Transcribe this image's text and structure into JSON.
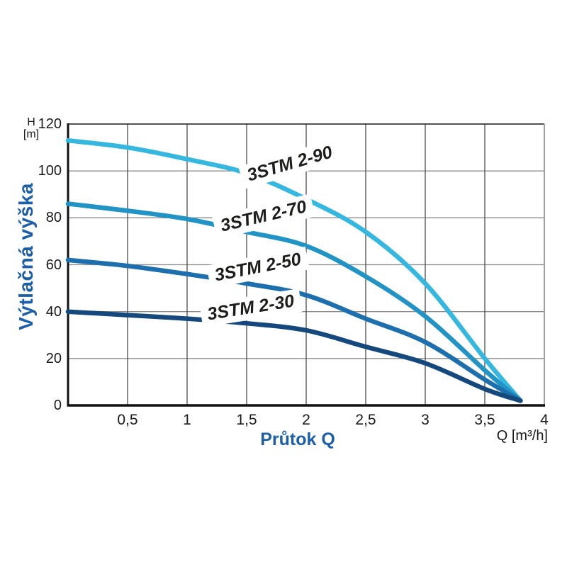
{
  "page": {
    "background": "#ffffff",
    "description": "Pump head-flow performance curves"
  },
  "y_axis_header": {
    "line1": "H",
    "line2": "[m]"
  },
  "chart_data": {
    "type": "line",
    "title": "",
    "xlabel": "Průtok Q",
    "x_unit": "Q [m³/h]",
    "ylabel": "Výtlačná výška",
    "y_unit": "H [m]",
    "xlim": [
      0,
      4
    ],
    "ylim": [
      0,
      120
    ],
    "x_grid_step": 0.5,
    "y_grid_step": 20,
    "grid": true,
    "legend_position": "inline-curve-labels",
    "x_ticks": [
      {
        "value": 0.5,
        "label": "0,5"
      },
      {
        "value": 1,
        "label": "1"
      },
      {
        "value": 1.5,
        "label": "1,5"
      },
      {
        "value": 2,
        "label": "2"
      },
      {
        "value": 2.5,
        "label": "2,5"
      },
      {
        "value": 3,
        "label": "3"
      },
      {
        "value": 3.5,
        "label": "3,5"
      },
      {
        "value": 4,
        "label": "4"
      }
    ],
    "y_ticks": [
      {
        "value": 120,
        "label": "120"
      },
      {
        "value": 100,
        "label": "100"
      },
      {
        "value": 80,
        "label": "80"
      },
      {
        "value": 60,
        "label": "60"
      },
      {
        "value": 40,
        "label": "40"
      },
      {
        "value": 20,
        "label": "20"
      },
      {
        "value": 0,
        "label": "0"
      }
    ],
    "series": [
      {
        "name": "3STM 2-90",
        "color": "#35b7df",
        "points": [
          [
            0,
            113
          ],
          [
            0.5,
            110
          ],
          [
            1,
            105
          ],
          [
            1.5,
            99
          ],
          [
            2,
            88
          ],
          [
            2.5,
            74
          ],
          [
            3,
            52
          ],
          [
            3.5,
            20
          ],
          [
            3.8,
            2
          ]
        ]
      },
      {
        "name": "3STM 2-70",
        "color": "#2193c4",
        "points": [
          [
            0,
            86
          ],
          [
            0.5,
            83
          ],
          [
            1,
            79.5
          ],
          [
            1.5,
            74
          ],
          [
            2,
            68
          ],
          [
            2.5,
            55
          ],
          [
            3,
            38
          ],
          [
            3.5,
            15
          ],
          [
            3.8,
            2
          ]
        ]
      },
      {
        "name": "3STM 2-50",
        "color": "#1d6fad",
        "points": [
          [
            0,
            62
          ],
          [
            0.5,
            59.5
          ],
          [
            1,
            56
          ],
          [
            1.5,
            52
          ],
          [
            2,
            47
          ],
          [
            2.5,
            37
          ],
          [
            3,
            27
          ],
          [
            3.5,
            11
          ],
          [
            3.8,
            2
          ]
        ]
      },
      {
        "name": "3STM 2-30",
        "color": "#15497e",
        "points": [
          [
            0,
            40
          ],
          [
            0.5,
            38.5
          ],
          [
            1,
            37
          ],
          [
            1.5,
            35
          ],
          [
            2,
            32
          ],
          [
            2.5,
            25
          ],
          [
            3,
            18
          ],
          [
            3.5,
            7
          ],
          [
            3.8,
            2
          ]
        ]
      }
    ],
    "colors": {
      "axis": "#111111",
      "grid_horizontal": "#8c8c8c",
      "grid_vertical": "#4c4c4c",
      "border_top": "#1a1a1a",
      "border_right": "#a0a0a0",
      "tick_text": "#1a1a1a",
      "axis_title": "#1c5fa8",
      "curve_label_text": "#1d1d1b"
    }
  }
}
